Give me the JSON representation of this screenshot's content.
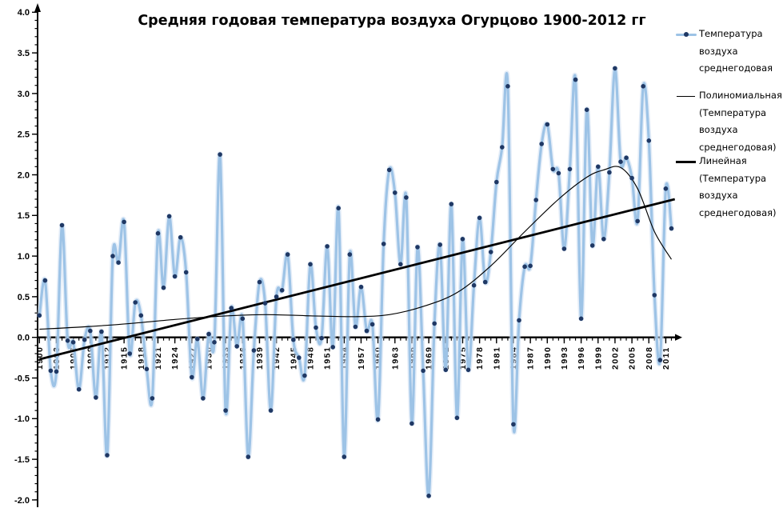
{
  "title": "Средняя годовая температура воздуха Огурцово 1900-2012 гг",
  "legend": {
    "items": [
      {
        "name": "series",
        "lines": [
          "Температура",
          "воздуха",
          "среднегодовая"
        ]
      },
      {
        "name": "polynomial-trend",
        "lines": [
          "Полиномиальная",
          "(Температура",
          "воздуха",
          "среднегодовая)"
        ]
      },
      {
        "name": "linear-trend",
        "lines": [
          "Линейная",
          "(Температура",
          "воздуха",
          "среднегодовая)"
        ]
      }
    ]
  },
  "colors": {
    "series_line": "#9DC3E6",
    "series_halo": "#CDDFF3",
    "marker": "#1F3864",
    "trend": "#000000",
    "axis": "#000000",
    "tick_label": "#000000"
  },
  "chart_data": {
    "type": "line",
    "title": "Средняя годовая температура воздуха Огурцово 1900-2012 гг",
    "xlabel": "",
    "ylabel": "",
    "x_start": 1900,
    "x_end": 2012,
    "ylim": [
      -2.0,
      4.0
    ],
    "y_major_step": 0.5,
    "y_minor_step": 0.1,
    "x_major_step": 3,
    "x_minor_step": 1,
    "grid": false,
    "legend_position": "right",
    "y_tick_labels": [
      "4.0",
      "3.5",
      "3.0",
      "2.5",
      "2.0",
      "1.5",
      "1.0",
      "0.5",
      "0.0",
      "-0.5",
      "-1.0",
      "-1.5",
      "-2.0"
    ],
    "x_tick_labels": [
      "1900",
      "1903",
      "1906",
      "1909",
      "1912",
      "1915",
      "1918",
      "1921",
      "1924",
      "1927",
      "1930",
      "1933",
      "1936",
      "1939",
      "1942",
      "1945",
      "1948",
      "1951",
      "1954",
      "1957",
      "1960",
      "1963",
      "1966",
      "1969",
      "1972",
      "1975",
      "1978",
      "1981",
      "1984",
      "1987",
      "1990",
      "1993",
      "1996",
      "1999",
      "2002",
      "2005",
      "2008",
      "2011"
    ],
    "series": [
      {
        "name": "Температура воздуха среднегодовая",
        "smoothed": true,
        "values": [
          0.27,
          0.7,
          -0.41,
          -0.42,
          1.38,
          -0.04,
          -0.06,
          -0.64,
          -0.03,
          0.08,
          -0.74,
          0.07,
          -1.45,
          1.0,
          0.92,
          1.42,
          -0.2,
          0.43,
          0.27,
          -0.39,
          -0.75,
          1.28,
          0.61,
          1.49,
          0.75,
          1.23,
          0.8,
          -0.49,
          -0.02,
          -0.75,
          0.04,
          -0.06,
          2.25,
          -0.9,
          0.36,
          -0.11,
          0.23,
          -1.47,
          -0.16,
          0.68,
          0.42,
          -0.9,
          0.5,
          0.58,
          1.02,
          -0.03,
          -0.25,
          -0.47,
          0.9,
          0.12,
          -0.01,
          1.12,
          -0.12,
          1.59,
          -1.47,
          1.02,
          0.13,
          0.62,
          0.08,
          0.16,
          -1.01,
          1.15,
          2.06,
          1.78,
          0.9,
          1.72,
          -1.06,
          1.11,
          -0.41,
          -1.95,
          0.17,
          1.14,
          -0.4,
          1.64,
          -0.99,
          1.21,
          -0.4,
          0.64,
          1.47,
          0.68,
          1.05,
          1.91,
          2.34,
          3.09,
          -1.07,
          0.21,
          0.87,
          0.88,
          1.69,
          2.38,
          2.62,
          2.07,
          2.02,
          1.09,
          2.07,
          3.17,
          0.23,
          2.8,
          1.13,
          2.1,
          1.21,
          2.03,
          3.31,
          2.16,
          2.21,
          1.96,
          1.43,
          3.09,
          2.42,
          0.52,
          -0.28,
          1.83,
          1.34
        ]
      }
    ],
    "trend_linear": {
      "x1": 1900,
      "y1": -0.27,
      "x2": 2012.6,
      "y2": 1.7
    },
    "trend_polynomial_points": [
      [
        1900,
        0.1
      ],
      [
        1908,
        0.13
      ],
      [
        1916,
        0.17
      ],
      [
        1924,
        0.22
      ],
      [
        1932,
        0.26
      ],
      [
        1940,
        0.28
      ],
      [
        1948,
        0.265
      ],
      [
        1956,
        0.255
      ],
      [
        1962,
        0.28
      ],
      [
        1968,
        0.38
      ],
      [
        1974,
        0.55
      ],
      [
        1980,
        0.88
      ],
      [
        1986,
        1.3
      ],
      [
        1992,
        1.7
      ],
      [
        1997,
        1.97
      ],
      [
        2000,
        2.06
      ],
      [
        2003,
        2.09
      ],
      [
        2006,
        1.83
      ],
      [
        2009,
        1.3
      ],
      [
        2012,
        0.96
      ]
    ]
  }
}
